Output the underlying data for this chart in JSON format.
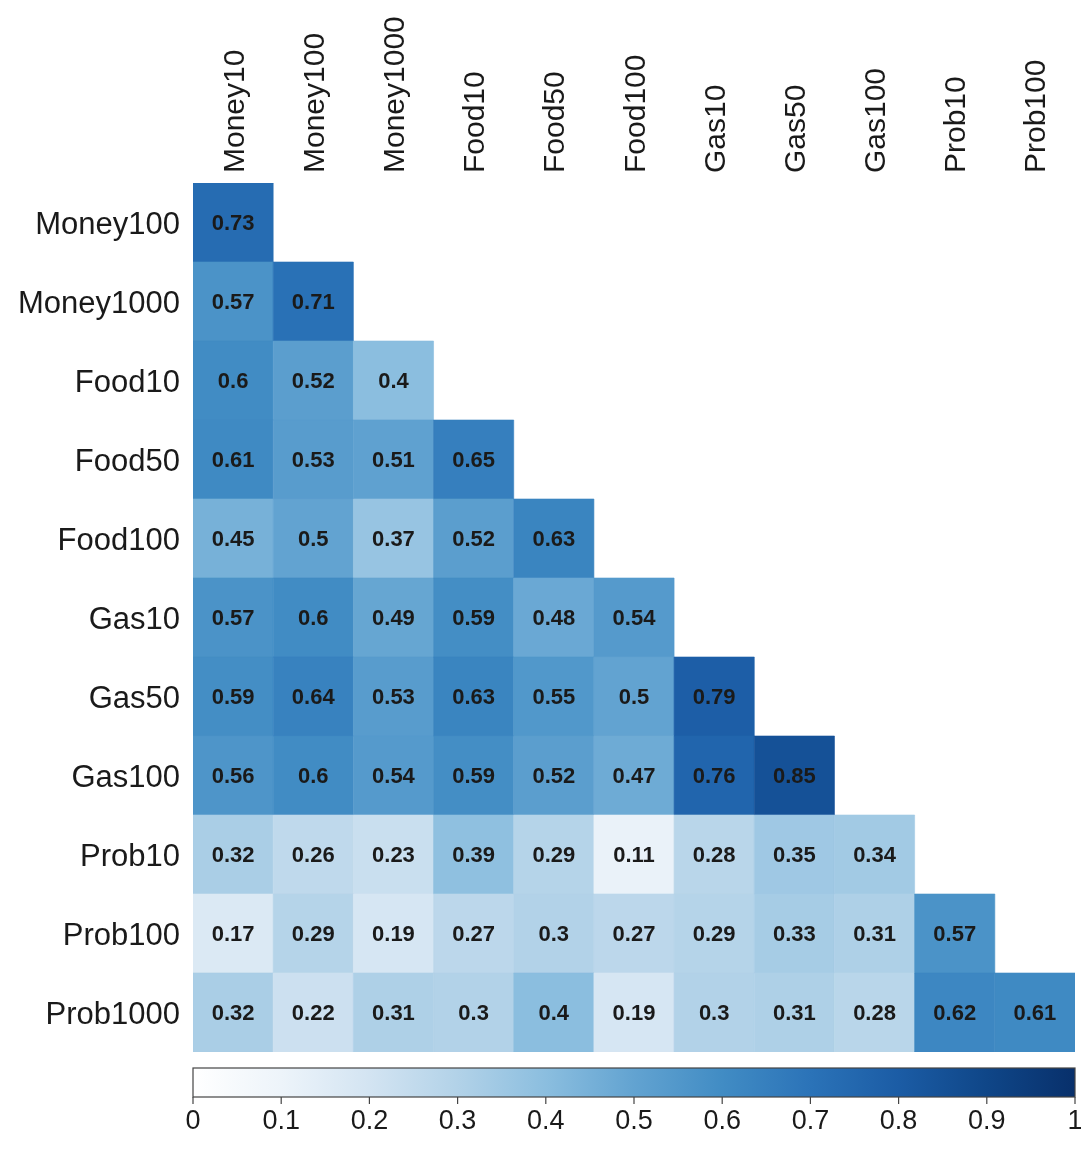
{
  "chart_data": {
    "type": "heatmap",
    "categories": [
      "Money10",
      "Money100",
      "Money1000",
      "Food10",
      "Food50",
      "Food100",
      "Gas10",
      "Gas50",
      "Gas100",
      "Prob10",
      "Prob100"
    ],
    "y_categories": [
      "Money100",
      "Money1000",
      "Food10",
      "Food50",
      "Food100",
      "Gas10",
      "Gas50",
      "Gas100",
      "Prob10",
      "Prob100",
      "Prob1000"
    ],
    "cells": [
      [
        0.73,
        null,
        null,
        null,
        null,
        null,
        null,
        null,
        null,
        null,
        null
      ],
      [
        0.57,
        0.71,
        null,
        null,
        null,
        null,
        null,
        null,
        null,
        null,
        null
      ],
      [
        0.6,
        0.52,
        0.4,
        null,
        null,
        null,
        null,
        null,
        null,
        null,
        null
      ],
      [
        0.61,
        0.53,
        0.51,
        0.65,
        null,
        null,
        null,
        null,
        null,
        null,
        null
      ],
      [
        0.45,
        0.5,
        0.37,
        0.52,
        0.63,
        null,
        null,
        null,
        null,
        null,
        null
      ],
      [
        0.57,
        0.6,
        0.49,
        0.59,
        0.48,
        0.54,
        null,
        null,
        null,
        null,
        null
      ],
      [
        0.59,
        0.64,
        0.53,
        0.63,
        0.55,
        0.5,
        0.79,
        null,
        null,
        null,
        null
      ],
      [
        0.56,
        0.6,
        0.54,
        0.59,
        0.52,
        0.47,
        0.76,
        0.85,
        null,
        null,
        null
      ],
      [
        0.32,
        0.26,
        0.23,
        0.39,
        0.29,
        0.11,
        0.28,
        0.35,
        0.34,
        null,
        null
      ],
      [
        0.17,
        0.29,
        0.19,
        0.27,
        0.3,
        0.27,
        0.29,
        0.33,
        0.31,
        0.57,
        null
      ],
      [
        0.32,
        0.22,
        0.31,
        0.3,
        0.4,
        0.19,
        0.3,
        0.31,
        0.28,
        0.62,
        0.61
      ]
    ],
    "clim": [
      0,
      1
    ],
    "cticks": [
      0,
      0.1,
      0.2,
      0.3,
      0.4,
      0.5,
      0.6,
      0.7,
      0.8,
      0.9,
      1
    ],
    "data_labels": true
  }
}
